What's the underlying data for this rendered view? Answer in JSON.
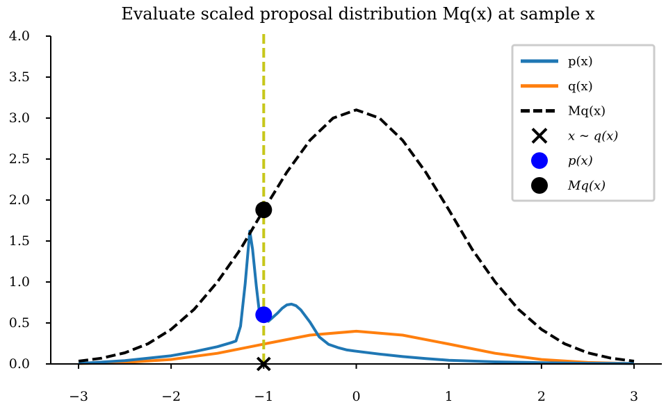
{
  "chart_data": {
    "type": "line",
    "title": "Evaluate scaled proposal distribution Mq(x) at sample x",
    "xlabel": "",
    "ylabel": "",
    "xlim": [
      -3.3,
      3.3
    ],
    "ylim": [
      0,
      4.0
    ],
    "x_ticks": [
      -3,
      -2,
      -1,
      0,
      1,
      2,
      3
    ],
    "x_tick_labels": [
      "−3",
      "−2",
      "−1",
      "0",
      "1",
      "2",
      "3"
    ],
    "y_ticks": [
      0,
      0.5,
      1.0,
      1.5,
      2.0,
      2.5,
      3.0,
      3.5,
      4.0
    ],
    "y_tick_labels": [
      "0.0",
      "0.5",
      "1.0",
      "1.5",
      "2.0",
      "2.5",
      "3.0",
      "3.5",
      "4.0"
    ],
    "grid": false,
    "legend_position": "top-right",
    "series": [
      {
        "name": "p(x)",
        "color": "#1f77b4",
        "style": "solid",
        "x": [
          -3.0,
          -2.5,
          -2.0,
          -1.75,
          -1.5,
          -1.35,
          -1.3,
          -1.25,
          -1.2,
          -1.15,
          -1.12,
          -1.08,
          -1.05,
          -1.02,
          -1.0,
          -0.95,
          -0.9,
          -0.85,
          -0.8,
          -0.75,
          -0.7,
          -0.65,
          -0.6,
          -0.5,
          -0.4,
          -0.3,
          -0.2,
          -0.1,
          0.0,
          0.25,
          0.5,
          0.75,
          1.0,
          1.5,
          2.0,
          2.5,
          3.0
        ],
        "y": [
          0.005,
          0.04,
          0.1,
          0.15,
          0.21,
          0.26,
          0.28,
          0.46,
          0.98,
          1.62,
          1.4,
          0.95,
          0.66,
          0.56,
          0.55,
          0.52,
          0.57,
          0.62,
          0.68,
          0.72,
          0.73,
          0.71,
          0.66,
          0.51,
          0.33,
          0.24,
          0.2,
          0.17,
          0.155,
          0.12,
          0.09,
          0.065,
          0.045,
          0.025,
          0.015,
          0.008,
          0.005
        ]
      },
      {
        "name": "q(x)",
        "color": "#ff7f0e",
        "style": "solid",
        "x": [
          -3.0,
          -2.5,
          -2.0,
          -1.5,
          -1.0,
          -0.5,
          0.0,
          0.5,
          1.0,
          1.5,
          2.0,
          2.5,
          3.0
        ],
        "y": [
          0.0044,
          0.0175,
          0.054,
          0.1295,
          0.242,
          0.352,
          0.399,
          0.352,
          0.242,
          0.1295,
          0.054,
          0.0175,
          0.0044
        ]
      },
      {
        "name": "Mq(x)",
        "color": "#000000",
        "style": "dashed",
        "x": [
          -3.0,
          -2.75,
          -2.5,
          -2.25,
          -2.0,
          -1.75,
          -1.5,
          -1.25,
          -1.0,
          -0.75,
          -0.5,
          -0.25,
          0.0,
          0.25,
          0.5,
          0.75,
          1.0,
          1.25,
          1.5,
          1.75,
          2.0,
          2.25,
          2.5,
          2.75,
          3.0
        ],
        "y": [
          0.034,
          0.07,
          0.136,
          0.246,
          0.421,
          0.668,
          1.0,
          1.401,
          1.88,
          2.34,
          2.73,
          3.0,
          3.1,
          3.0,
          2.73,
          2.34,
          1.88,
          1.401,
          1.0,
          0.668,
          0.421,
          0.246,
          0.136,
          0.07,
          0.034
        ]
      }
    ],
    "vline": {
      "x": -1.0,
      "color": "#c7c71a",
      "style": "dashed"
    },
    "points": [
      {
        "name": "x ~ q(x)",
        "x": -1.0,
        "y": 0.0,
        "marker": "x",
        "color": "#000000"
      },
      {
        "name": "p(x)",
        "x": -1.0,
        "y": 0.6,
        "marker": "circle",
        "color": "#0000ff"
      },
      {
        "name": "Mq(x)",
        "x": -1.0,
        "y": 1.88,
        "marker": "circle",
        "color": "#000000"
      }
    ],
    "legend": [
      {
        "label": "p(x)",
        "kind": "line",
        "color": "#1f77b4",
        "math": false
      },
      {
        "label": "q(x)",
        "kind": "line",
        "color": "#ff7f0e",
        "math": false
      },
      {
        "label": "Mq(x)",
        "kind": "dashed",
        "color": "#000000",
        "math": false
      },
      {
        "label": "x ∼ q(x)",
        "kind": "x",
        "color": "#000000",
        "math": true
      },
      {
        "label": "p(x)",
        "kind": "circle",
        "color": "#0000ff",
        "math": true
      },
      {
        "label": "Mq(x)",
        "kind": "circle",
        "color": "#000000",
        "math": true
      }
    ]
  }
}
